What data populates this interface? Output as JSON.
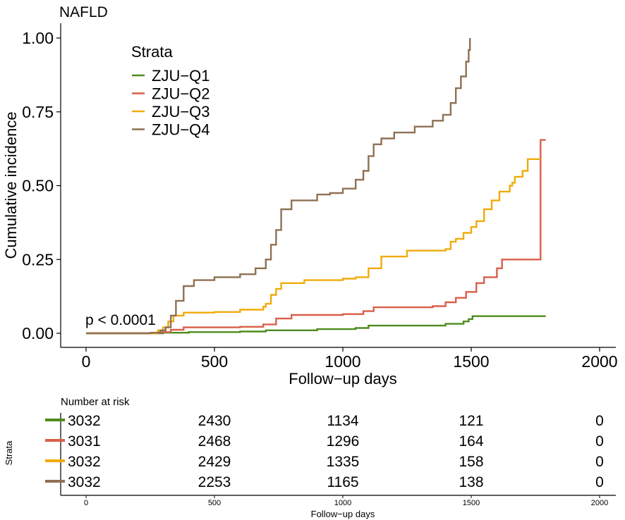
{
  "chart_data": {
    "type": "line",
    "subtype": "step (cumulative incidence)",
    "title": "NAFLD",
    "xlabel": "Follow−up days",
    "ylabel": "Cumulative incidence",
    "xlim": [
      0,
      2000
    ],
    "ylim": [
      0,
      1.0
    ],
    "x_ticks": [
      0,
      500,
      1000,
      1500,
      2000
    ],
    "y_ticks": [
      0.0,
      0.25,
      0.5,
      0.75,
      1.0
    ],
    "x_tick_labels": [
      "0",
      "500",
      "1000",
      "1500",
      "2000"
    ],
    "y_tick_labels": [
      "0.00",
      "0.25",
      "0.50",
      "0.75",
      "1.00"
    ],
    "legend": {
      "title": "Strata",
      "position": "top-left",
      "entries": [
        "ZJU−Q1",
        "ZJU−Q2",
        "ZJU−Q3",
        "ZJU−Q4"
      ]
    },
    "annotation": "p < 0.0001",
    "series": [
      {
        "name": "ZJU−Q1",
        "color": "#4d8c1d",
        "points": [
          [
            0,
            0
          ],
          [
            200,
            0
          ],
          [
            300,
            0.002
          ],
          [
            400,
            0.004
          ],
          [
            600,
            0.006
          ],
          [
            700,
            0.01
          ],
          [
            900,
            0.014
          ],
          [
            1050,
            0.018
          ],
          [
            1100,
            0.026
          ],
          [
            1400,
            0.032
          ],
          [
            1470,
            0.04
          ],
          [
            1490,
            0.048
          ],
          [
            1505,
            0.058
          ],
          [
            1790,
            0.058
          ]
        ]
      },
      {
        "name": "ZJU−Q2",
        "color": "#d95f4a",
        "points": [
          [
            0,
            0
          ],
          [
            280,
            0.004
          ],
          [
            330,
            0.012
          ],
          [
            380,
            0.02
          ],
          [
            600,
            0.022
          ],
          [
            690,
            0.03
          ],
          [
            740,
            0.05
          ],
          [
            800,
            0.062
          ],
          [
            1000,
            0.065
          ],
          [
            1080,
            0.075
          ],
          [
            1120,
            0.088
          ],
          [
            1350,
            0.092
          ],
          [
            1400,
            0.105
          ],
          [
            1440,
            0.12
          ],
          [
            1480,
            0.14
          ],
          [
            1520,
            0.17
          ],
          [
            1550,
            0.19
          ],
          [
            1600,
            0.22
          ],
          [
            1620,
            0.25
          ],
          [
            1770,
            0.25
          ],
          [
            1770,
            0.655
          ],
          [
            1790,
            0.655
          ]
        ]
      },
      {
        "name": "ZJU−Q3",
        "color": "#f0ab0a",
        "points": [
          [
            0,
            0
          ],
          [
            280,
            0.01
          ],
          [
            300,
            0.02
          ],
          [
            320,
            0.04
          ],
          [
            340,
            0.06
          ],
          [
            380,
            0.07
          ],
          [
            500,
            0.072
          ],
          [
            600,
            0.08
          ],
          [
            690,
            0.09
          ],
          [
            700,
            0.1
          ],
          [
            720,
            0.13
          ],
          [
            740,
            0.15
          ],
          [
            760,
            0.17
          ],
          [
            850,
            0.18
          ],
          [
            1000,
            0.185
          ],
          [
            1050,
            0.19
          ],
          [
            1100,
            0.22
          ],
          [
            1150,
            0.26
          ],
          [
            1250,
            0.28
          ],
          [
            1400,
            0.285
          ],
          [
            1420,
            0.31
          ],
          [
            1440,
            0.32
          ],
          [
            1470,
            0.34
          ],
          [
            1500,
            0.36
          ],
          [
            1520,
            0.38
          ],
          [
            1550,
            0.42
          ],
          [
            1580,
            0.45
          ],
          [
            1600,
            0.45
          ],
          [
            1610,
            0.48
          ],
          [
            1650,
            0.5
          ],
          [
            1660,
            0.51
          ],
          [
            1670,
            0.53
          ],
          [
            1700,
            0.55
          ],
          [
            1720,
            0.59
          ],
          [
            1770,
            0.59
          ]
        ]
      },
      {
        "name": "ZJU−Q4",
        "color": "#8f7053",
        "points": [
          [
            0,
            0
          ],
          [
            200,
            0
          ],
          [
            250,
            0.002
          ],
          [
            290,
            0.01
          ],
          [
            310,
            0.02
          ],
          [
            330,
            0.06
          ],
          [
            350,
            0.11
          ],
          [
            380,
            0.16
          ],
          [
            420,
            0.18
          ],
          [
            500,
            0.19
          ],
          [
            600,
            0.2
          ],
          [
            660,
            0.22
          ],
          [
            700,
            0.25
          ],
          [
            720,
            0.3
          ],
          [
            740,
            0.35
          ],
          [
            760,
            0.42
          ],
          [
            800,
            0.45
          ],
          [
            900,
            0.47
          ],
          [
            950,
            0.475
          ],
          [
            1000,
            0.49
          ],
          [
            1050,
            0.52
          ],
          [
            1080,
            0.55
          ],
          [
            1100,
            0.6
          ],
          [
            1120,
            0.64
          ],
          [
            1150,
            0.66
          ],
          [
            1200,
            0.68
          ],
          [
            1280,
            0.7
          ],
          [
            1350,
            0.72
          ],
          [
            1390,
            0.74
          ],
          [
            1420,
            0.78
          ],
          [
            1440,
            0.83
          ],
          [
            1460,
            0.87
          ],
          [
            1480,
            0.92
          ],
          [
            1490,
            0.96
          ],
          [
            1495,
            1.0
          ]
        ]
      }
    ]
  },
  "risk_table": {
    "title": "Number at risk",
    "ylabel": "Strata",
    "xlabel": "Follow−up days",
    "time_points": [
      0,
      500,
      1000,
      1500,
      2000
    ],
    "x_tick_labels": [
      "0",
      "500",
      "1000",
      "1500",
      "2000"
    ],
    "rows": [
      {
        "name": "ZJU−Q1",
        "color": "#4d8c1d",
        "values": [
          "3032",
          "2430",
          "1134",
          "121",
          "0"
        ]
      },
      {
        "name": "ZJU−Q2",
        "color": "#d95f4a",
        "values": [
          "3031",
          "2468",
          "1296",
          "164",
          "0"
        ]
      },
      {
        "name": "ZJU−Q3",
        "color": "#f0ab0a",
        "values": [
          "3032",
          "2429",
          "1335",
          "158",
          "0"
        ]
      },
      {
        "name": "ZJU−Q4",
        "color": "#8f7053",
        "values": [
          "3032",
          "2253",
          "1165",
          "138",
          "0"
        ]
      }
    ]
  }
}
